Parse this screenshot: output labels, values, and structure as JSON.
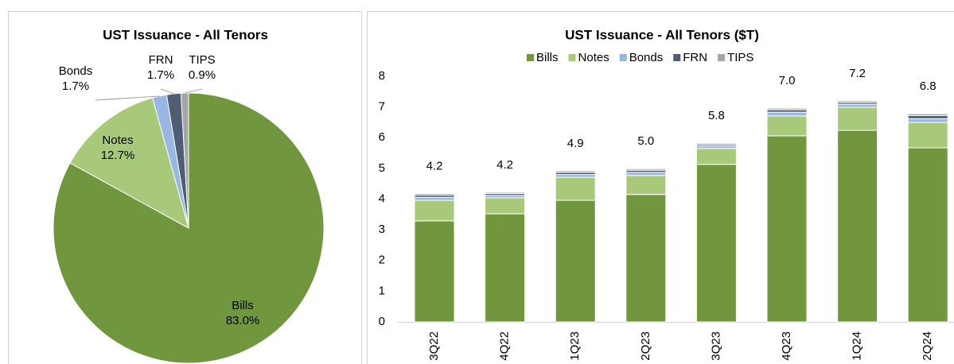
{
  "chart_data": [
    {
      "type": "pie",
      "title": "UST Issuance - All Tenors",
      "categories": [
        "Bills",
        "Notes",
        "Bonds",
        "FRN",
        "TIPS"
      ],
      "values": [
        83.0,
        12.7,
        1.7,
        1.7,
        0.9
      ],
      "value_labels": [
        "83.0%",
        "12.7%",
        "1.7%",
        "1.7%",
        "0.9%"
      ],
      "colors": [
        "#70963e",
        "#a9c97a",
        "#98b8e2",
        "#4f5d75",
        "#a6a6a6"
      ]
    },
    {
      "type": "bar",
      "stacked": true,
      "title": "UST Issuance - All Tenors ($T)",
      "categories": [
        "3Q22",
        "4Q22",
        "1Q23",
        "2Q23",
        "3Q23",
        "4Q23",
        "1Q24",
        "2Q24"
      ],
      "series": [
        {
          "name": "Bills",
          "color": "#70963e",
          "values": [
            3.29,
            3.52,
            3.96,
            4.15,
            5.13,
            6.06,
            6.24,
            5.67
          ]
        },
        {
          "name": "Notes",
          "color": "#a9c97a",
          "values": [
            0.67,
            0.52,
            0.75,
            0.62,
            0.52,
            0.65,
            0.75,
            0.83
          ]
        },
        {
          "name": "Bonds",
          "color": "#98b8e2",
          "values": [
            0.1,
            0.08,
            0.09,
            0.1,
            0.08,
            0.12,
            0.1,
            0.12
          ]
        },
        {
          "name": "FRN",
          "color": "#4f5d75",
          "values": [
            0.07,
            0.06,
            0.07,
            0.07,
            0.05,
            0.08,
            0.06,
            0.1
          ]
        },
        {
          "name": "TIPS",
          "color": "#a6a6a6",
          "values": [
            0.05,
            0.04,
            0.05,
            0.05,
            0.04,
            0.05,
            0.05,
            0.06
          ]
        }
      ],
      "total_labels": [
        "4.2",
        "4.2",
        "4.9",
        "5.0",
        "5.8",
        "7.0",
        "7.2",
        "6.8"
      ],
      "ylim": [
        0,
        8
      ],
      "yticks": [
        0,
        1,
        2,
        3,
        4,
        5,
        6,
        7,
        8
      ],
      "grid": false,
      "legend": "top"
    }
  ]
}
